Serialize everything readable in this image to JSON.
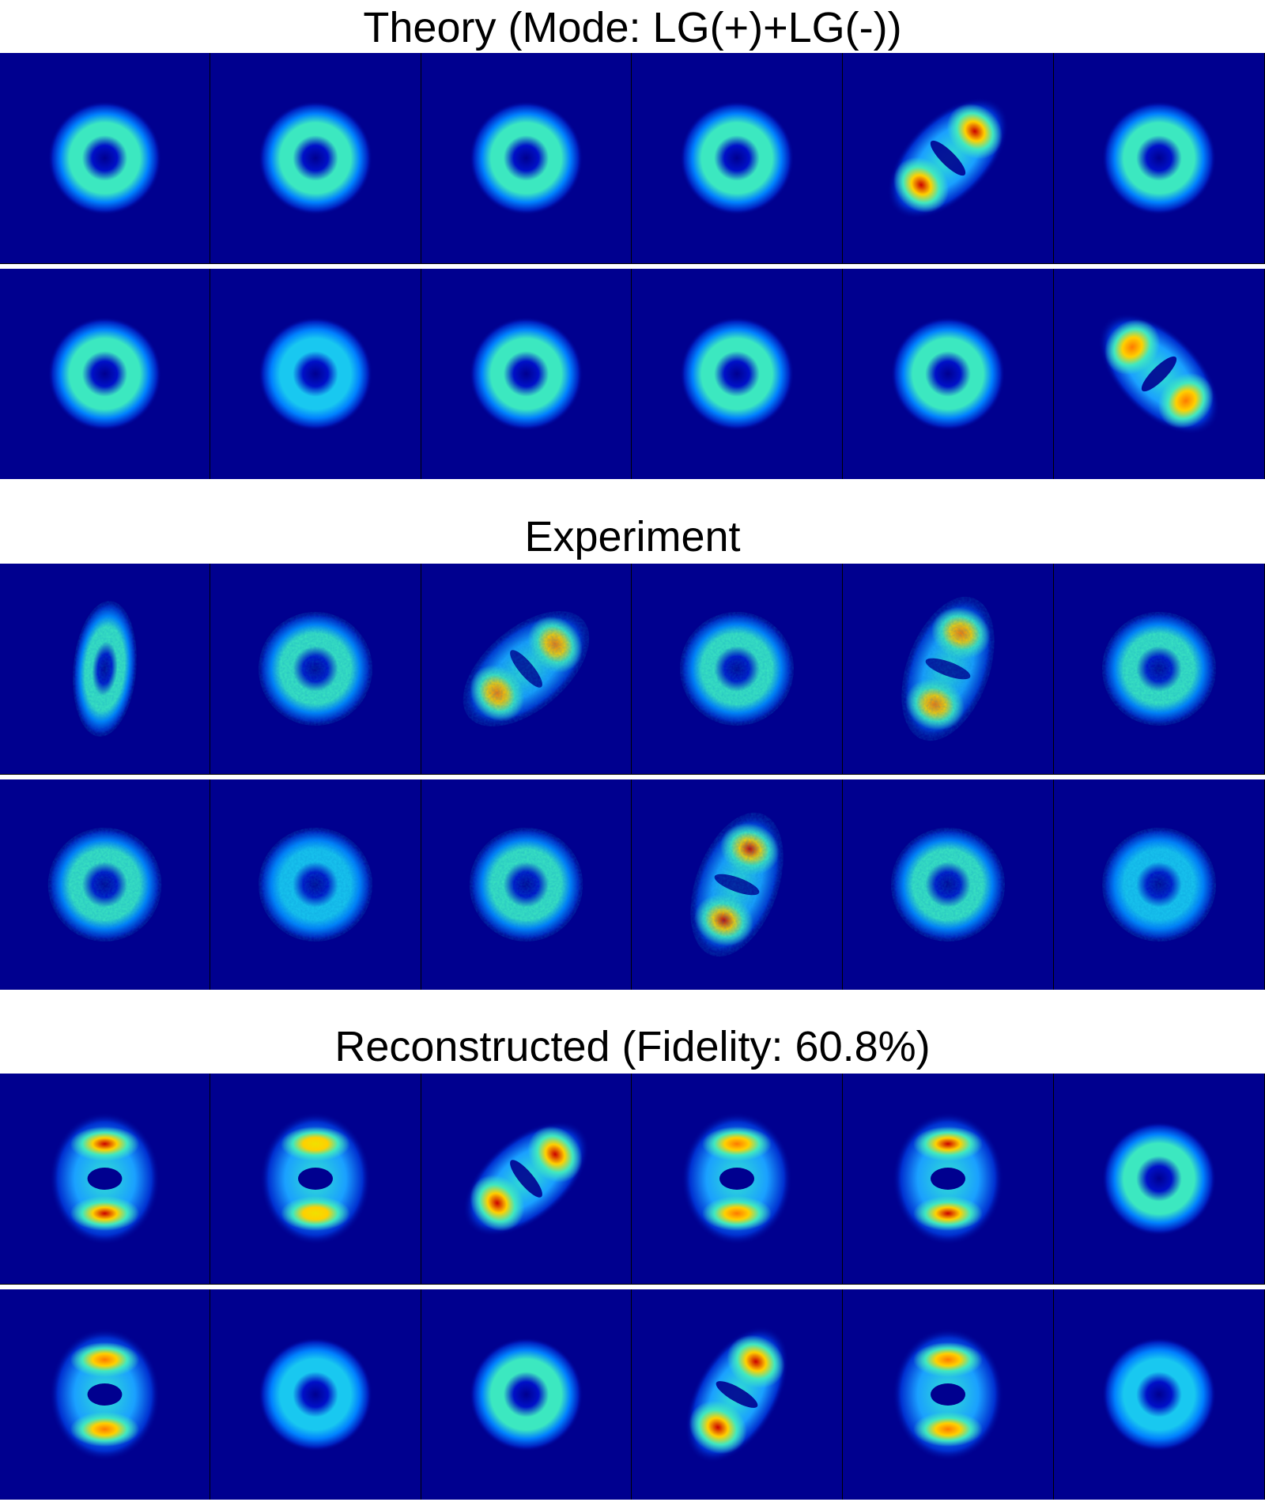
{
  "sections": [
    {
      "title": "Theory (Mode: LG(+)+LG(-))",
      "rows": [
        [
          {
            "kind": "donut"
          },
          {
            "kind": "donut"
          },
          {
            "kind": "donut"
          },
          {
            "kind": "donut"
          },
          {
            "kind": "lobes",
            "angle": -45,
            "peak": "red"
          },
          {
            "kind": "donut"
          }
        ],
        [
          {
            "kind": "donut"
          },
          {
            "kind": "donut",
            "faint": true
          },
          {
            "kind": "donut"
          },
          {
            "kind": "donut"
          },
          {
            "kind": "donut"
          },
          {
            "kind": "lobes",
            "angle": 45,
            "peak": "orange"
          }
        ]
      ]
    },
    {
      "title": "Experiment",
      "rows": [
        [
          {
            "kind": "ellipse",
            "angle": 5,
            "noisy": true
          },
          {
            "kind": "donut",
            "noisy": true
          },
          {
            "kind": "lobes",
            "angle": -40,
            "peak": "orange",
            "noisy": true
          },
          {
            "kind": "donut",
            "noisy": true
          },
          {
            "kind": "lobes",
            "angle": -70,
            "peak": "orange",
            "noisy": true
          },
          {
            "kind": "donut",
            "noisy": true
          }
        ],
        [
          {
            "kind": "donut",
            "noisy": true
          },
          {
            "kind": "donut",
            "faint": true,
            "noisy": true
          },
          {
            "kind": "donut",
            "noisy": true
          },
          {
            "kind": "lobes",
            "angle": -70,
            "peak": "red",
            "noisy": true
          },
          {
            "kind": "donut",
            "noisy": true
          },
          {
            "kind": "donut",
            "faint": true,
            "noisy": true
          }
        ]
      ]
    },
    {
      "title": "Reconstructed (Fidelity: 60.8%)",
      "rows": [
        [
          {
            "kind": "vlobes",
            "peak": "red"
          },
          {
            "kind": "vlobes",
            "peak": "yellow"
          },
          {
            "kind": "lobes",
            "angle": -40,
            "peak": "red"
          },
          {
            "kind": "vlobes",
            "peak": "orange"
          },
          {
            "kind": "vlobes",
            "peak": "red"
          },
          {
            "kind": "donut"
          }
        ],
        [
          {
            "kind": "vlobes",
            "peak": "orange"
          },
          {
            "kind": "donut",
            "faint": true
          },
          {
            "kind": "donut"
          },
          {
            "kind": "lobes",
            "angle": -60,
            "peak": "red"
          },
          {
            "kind": "vlobes",
            "peak": "orange"
          },
          {
            "kind": "donut",
            "faint": true
          }
        ]
      ]
    }
  ]
}
